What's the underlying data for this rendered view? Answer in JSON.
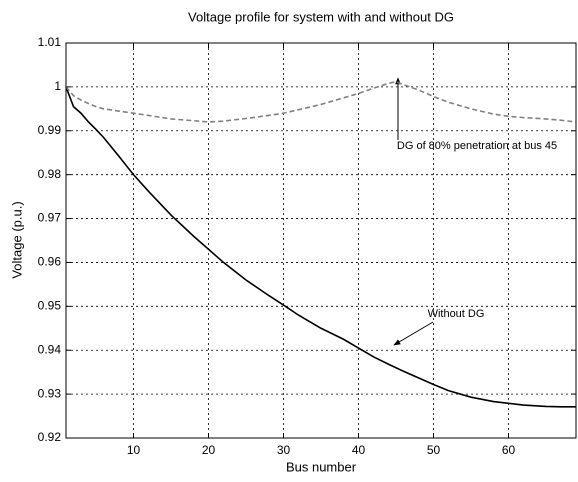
{
  "chart_data": {
    "type": "line",
    "title": "Voltage profile for system with and without DG",
    "xlabel": "Bus number",
    "ylabel": "Voltage (p.u.)",
    "x": [
      1,
      2,
      3,
      4,
      5,
      6,
      8,
      10,
      12,
      15,
      18,
      20,
      22,
      25,
      28,
      30,
      32,
      35,
      38,
      40,
      42,
      44,
      45,
      46,
      48,
      50,
      52,
      55,
      58,
      60,
      62,
      65,
      67,
      69
    ],
    "series": [
      {
        "color": "#000000",
        "dash": false,
        "values": [
          1.0,
          0.9955,
          0.994,
          0.992,
          0.9903,
          0.9885,
          0.9843,
          0.98,
          0.9762,
          0.9708,
          0.966,
          0.963,
          0.96,
          0.956,
          0.9525,
          0.9503,
          0.948,
          0.945,
          0.9425,
          0.9405,
          0.9385,
          0.9368,
          0.936,
          0.9352,
          0.9337,
          0.9322,
          0.9308,
          0.9293,
          0.9283,
          0.9279,
          0.9275,
          0.9272,
          0.9271,
          0.9271
        ]
      },
      {
        "color": "#808080",
        "dash": true,
        "values": [
          1.0,
          0.998,
          0.997,
          0.9962,
          0.9955,
          0.995,
          0.9945,
          0.994,
          0.9935,
          0.9927,
          0.9923,
          0.992,
          0.9922,
          0.9928,
          0.9935,
          0.994,
          0.9948,
          0.996,
          0.9975,
          0.9985,
          0.9997,
          1.0008,
          1.0012,
          1.0005,
          0.9993,
          0.9978,
          0.9965,
          0.995,
          0.9938,
          0.9933,
          0.993,
          0.9927,
          0.9924,
          0.992
        ]
      }
    ],
    "annotations": [
      "DG of 80% penetration at bus 45",
      "Without DG"
    ],
    "xlim": [
      1,
      69
    ],
    "ylim": [
      0.92,
      1.01
    ],
    "xticks": [
      10,
      20,
      30,
      40,
      50,
      60
    ],
    "yticks": [
      0.92,
      0.93,
      0.94,
      0.95,
      0.96,
      0.97,
      0.98,
      0.99,
      1,
      1.01
    ],
    "grid": true
  }
}
